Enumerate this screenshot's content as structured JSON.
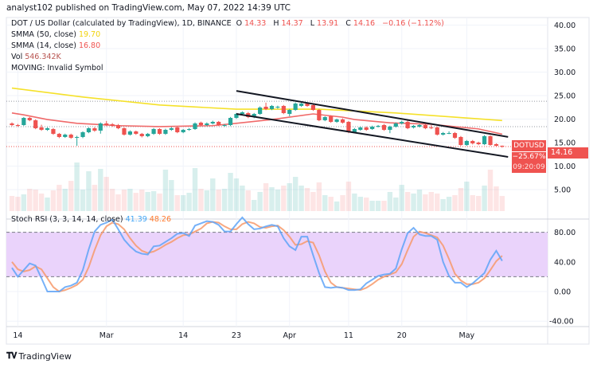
{
  "header": {
    "published": "analyst102 published on TradingView.com, May 07, 2022 14:39 UTC"
  },
  "legend": {
    "symbol": "DOT / US Dollar (calculated by TradingView), 1D, BINANCE",
    "o_label": "O",
    "o": "14.33",
    "h_label": "H",
    "h": "14.37",
    "l_label": "L",
    "l": "13.91",
    "c_label": "C",
    "c": "14.16",
    "change": "−0.16 (−1.12%)",
    "smma50_label": "SMMA (50, close)",
    "smma50_value": "19.70",
    "smma14_label": "SMMA (14, close)",
    "smma14_value": "16.80",
    "vol_label": "Vol",
    "vol_value": "546.342K",
    "moving": "MOVING: Invalid Symbol"
  },
  "price_tag": {
    "symbol": "DOTUSD",
    "price": "14.16",
    "change_pct": "−25.67%",
    "countdown": "09:20:09"
  },
  "stoch_legend": {
    "label": "Stoch RSI (3, 3, 14, 14, close)",
    "k": "41.39",
    "d": "48.26"
  },
  "footer": {
    "brand": "TradingView",
    "logo": "17"
  },
  "colors": {
    "up": "#26a69a",
    "down": "#ef5350",
    "smma50": "#f5e12a",
    "smma14": "#f06a6a",
    "stoch_k": "#5ea3f7",
    "stoch_d": "#f7996a",
    "band": "#ead3fb",
    "trendline": "#131722"
  },
  "chart_data": [
    {
      "type": "candlestick",
      "title": "DOT / US Dollar, 1D, BINANCE",
      "price_ticks": [
        "40.00",
        "35.00",
        "30.00",
        "25.00",
        "20.00",
        "15.00",
        "10.00",
        "5.00"
      ],
      "x_ticks": [
        {
          "label": "14",
          "date": "2022-02-14"
        },
        {
          "label": "Mar",
          "date": "2022-03-01"
        },
        {
          "label": "14",
          "date": "2022-03-14"
        },
        {
          "label": "23",
          "date": "2022-03-23"
        },
        {
          "label": "Apr",
          "date": "2022-04-01"
        },
        {
          "label": "11",
          "date": "2022-04-11"
        },
        {
          "label": "20",
          "date": "2022-04-20"
        },
        {
          "label": "May",
          "date": "2022-05-01"
        }
      ],
      "grid": true,
      "candles_columns": [
        "date",
        "open",
        "high",
        "low",
        "close",
        "volume_k"
      ],
      "candles": [
        [
          "2022-02-13",
          19.07,
          19.3,
          18.5,
          18.73,
          547
        ],
        [
          "2022-02-14",
          18.73,
          18.95,
          18.35,
          18.56,
          518
        ],
        [
          "2022-02-15",
          18.73,
          20.45,
          18.55,
          20.25,
          605
        ],
        [
          "2022-02-16",
          20.25,
          20.45,
          19.55,
          19.75,
          806
        ],
        [
          "2022-02-17",
          19.75,
          19.95,
          17.85,
          18.05,
          778
        ],
        [
          "2022-02-18",
          18.22,
          18.8,
          17.5,
          17.71,
          634
        ],
        [
          "2022-02-19",
          17.71,
          18.25,
          17.5,
          18.05,
          490
        ],
        [
          "2022-02-20",
          17.88,
          18.1,
          16.65,
          16.86,
          749
        ],
        [
          "2022-02-21",
          16.86,
          17.05,
          15.95,
          16.19,
          950
        ],
        [
          "2022-02-22",
          16.19,
          16.9,
          16.0,
          16.69,
          806
        ],
        [
          "2022-02-23",
          16.69,
          16.9,
          15.8,
          16.02,
          1094
        ],
        [
          "2022-02-24",
          16.1,
          16.45,
          14.32,
          16.19,
          1757
        ],
        [
          "2022-02-25",
          16.19,
          17.4,
          15.95,
          17.2,
          778
        ],
        [
          "2022-02-26",
          17.2,
          18.25,
          17.0,
          18.05,
          1440
        ],
        [
          "2022-02-27",
          18.05,
          18.3,
          17.3,
          17.54,
          950
        ],
        [
          "2022-02-28",
          17.54,
          19.3,
          16.9,
          19.07,
          1526
        ],
        [
          "2022-03-01",
          19.07,
          19.6,
          18.5,
          18.73,
          1238
        ],
        [
          "2022-03-02",
          18.9,
          19.15,
          18.35,
          18.56,
          806
        ],
        [
          "2022-03-03",
          18.73,
          18.95,
          17.85,
          18.05,
          605
        ],
        [
          "2022-03-04",
          18.05,
          18.25,
          16.5,
          16.69,
          778
        ],
        [
          "2022-03-05",
          16.69,
          17.6,
          16.5,
          17.37,
          806
        ],
        [
          "2022-03-06",
          17.37,
          17.55,
          16.65,
          16.86,
          662
        ],
        [
          "2022-03-07",
          16.86,
          17.05,
          16.1,
          16.36,
          778
        ],
        [
          "2022-03-08",
          16.36,
          17.05,
          16.15,
          16.86,
          691
        ],
        [
          "2022-03-09",
          16.86,
          18.1,
          16.65,
          17.88,
          720
        ],
        [
          "2022-03-10",
          17.88,
          18.05,
          16.65,
          16.86,
          634
        ],
        [
          "2022-03-11",
          16.86,
          17.95,
          16.65,
          17.71,
          1498
        ],
        [
          "2022-03-12",
          17.71,
          18.3,
          17.5,
          18.05,
          1123
        ],
        [
          "2022-03-13",
          18.22,
          18.4,
          17.0,
          17.2,
          576
        ],
        [
          "2022-03-14",
          17.2,
          17.9,
          17.0,
          17.71,
          576
        ],
        [
          "2022-03-15",
          17.71,
          18.1,
          17.5,
          17.88,
          662
        ],
        [
          "2022-03-16",
          17.88,
          19.3,
          17.7,
          19.07,
          1555
        ],
        [
          "2022-03-17",
          19.24,
          19.45,
          18.55,
          18.73,
          806
        ],
        [
          "2022-03-18",
          18.73,
          19.3,
          18.5,
          19.07,
          749
        ],
        [
          "2022-03-19",
          19.07,
          19.65,
          18.85,
          19.41,
          1181
        ],
        [
          "2022-03-20",
          19.41,
          19.6,
          18.5,
          18.73,
          778
        ],
        [
          "2022-03-21",
          18.56,
          18.95,
          18.35,
          18.73,
          806
        ],
        [
          "2022-03-22",
          18.73,
          20.45,
          18.5,
          20.25,
          1382
        ],
        [
          "2022-03-23",
          20.25,
          21.3,
          20.05,
          21.1,
          1181
        ],
        [
          "2022-03-24",
          21.1,
          21.65,
          20.9,
          21.44,
          922
        ],
        [
          "2022-03-25",
          21.27,
          21.5,
          20.2,
          20.42,
          749
        ],
        [
          "2022-03-26",
          20.42,
          21.3,
          20.2,
          21.1,
          403
        ],
        [
          "2022-03-27",
          21.1,
          22.7,
          20.9,
          22.46,
          691
        ],
        [
          "2022-03-28",
          22.63,
          23.5,
          21.9,
          22.12,
          1008
        ],
        [
          "2022-03-29",
          22.12,
          23.0,
          21.9,
          22.8,
          864
        ],
        [
          "2022-03-30",
          22.46,
          22.85,
          22.2,
          22.63,
          778
        ],
        [
          "2022-03-31",
          22.8,
          23.0,
          21.05,
          21.27,
          922
        ],
        [
          "2022-04-01",
          21.1,
          22.15,
          20.6,
          21.95,
          1008
        ],
        [
          "2022-04-02",
          21.95,
          23.55,
          21.75,
          23.3,
          1238
        ],
        [
          "2022-04-03",
          22.8,
          23.5,
          22.6,
          23.3,
          922
        ],
        [
          "2022-04-04",
          23.3,
          23.5,
          22.6,
          22.8,
          835
        ],
        [
          "2022-04-05",
          22.97,
          23.2,
          21.75,
          21.95,
          691
        ],
        [
          "2022-04-06",
          21.95,
          22.15,
          19.55,
          19.75,
          1037
        ],
        [
          "2022-04-07",
          19.75,
          20.6,
          19.55,
          20.42,
          576
        ],
        [
          "2022-04-08",
          20.59,
          20.8,
          19.2,
          19.41,
          518
        ],
        [
          "2022-04-09",
          19.41,
          20.1,
          19.2,
          19.92,
          346
        ],
        [
          "2022-04-10",
          19.92,
          20.15,
          19.05,
          19.24,
          576
        ],
        [
          "2022-04-11",
          19.41,
          19.6,
          17.0,
          17.2,
          1066
        ],
        [
          "2022-04-12",
          17.2,
          18.1,
          17.0,
          17.88,
          634
        ],
        [
          "2022-04-13",
          17.71,
          18.45,
          17.5,
          18.22,
          518
        ],
        [
          "2022-04-14",
          18.22,
          18.45,
          17.5,
          17.71,
          490
        ],
        [
          "2022-04-15",
          17.88,
          18.6,
          17.7,
          18.39,
          374
        ],
        [
          "2022-04-16",
          18.39,
          18.75,
          18.2,
          18.56,
          374
        ],
        [
          "2022-04-17",
          18.73,
          18.95,
          17.5,
          17.71,
          374
        ],
        [
          "2022-04-18",
          17.71,
          18.6,
          17.0,
          18.39,
          691
        ],
        [
          "2022-04-19",
          18.39,
          19.3,
          18.2,
          19.07,
          490
        ],
        [
          "2022-04-20",
          19.07,
          19.65,
          18.85,
          19.41,
          950
        ],
        [
          "2022-04-21",
          19.41,
          19.65,
          17.85,
          18.05,
          691
        ],
        [
          "2022-04-22",
          18.22,
          18.75,
          18.0,
          18.56,
          634
        ],
        [
          "2022-04-23",
          18.39,
          18.95,
          18.2,
          18.73,
          778
        ],
        [
          "2022-04-24",
          18.73,
          18.95,
          17.85,
          18.05,
          605
        ],
        [
          "2022-04-25",
          18.22,
          18.7,
          17.85,
          18.05,
          691
        ],
        [
          "2022-04-26",
          18.22,
          18.45,
          16.5,
          16.69,
          634
        ],
        [
          "2022-04-27",
          16.69,
          17.25,
          16.5,
          17.03,
          432
        ],
        [
          "2022-04-28",
          17.03,
          17.4,
          16.8,
          17.03,
          518
        ],
        [
          "2022-04-29",
          17.03,
          17.25,
          15.8,
          16.02,
          576
        ],
        [
          "2022-04-30",
          16.19,
          16.4,
          14.3,
          14.49,
          835
        ],
        [
          "2022-05-01",
          14.49,
          15.55,
          14.3,
          15.34,
          1066
        ],
        [
          "2022-05-02",
          15.34,
          15.55,
          14.6,
          14.83,
          576
        ],
        [
          "2022-05-03",
          15.0,
          15.2,
          14.45,
          14.66,
          547
        ],
        [
          "2022-05-04",
          14.66,
          16.6,
          14.45,
          16.36,
          922
        ],
        [
          "2022-05-05",
          16.36,
          16.55,
          14.3,
          14.49,
          1498
        ],
        [
          "2022-05-06",
          14.66,
          14.85,
          14.1,
          14.32,
          893
        ],
        [
          "2022-05-07",
          14.33,
          14.37,
          13.91,
          14.16,
          546.342
        ]
      ],
      "smma50": [
        [
          "2022-02-13",
          26.6
        ],
        [
          "2022-02-25",
          24.7
        ],
        [
          "2022-03-10",
          23.0
        ],
        [
          "2022-03-23",
          22.1
        ],
        [
          "2022-04-06",
          22.1
        ],
        [
          "2022-04-19",
          21.3
        ],
        [
          "2022-05-07",
          19.7
        ]
      ],
      "smma14": [
        [
          "2022-02-13",
          21.3
        ],
        [
          "2022-02-15",
          20.9
        ],
        [
          "2022-02-19",
          19.9
        ],
        [
          "2022-02-24",
          19.1
        ],
        [
          "2022-03-03",
          18.6
        ],
        [
          "2022-03-10",
          18.4
        ],
        [
          "2022-03-19",
          18.6
        ],
        [
          "2022-03-23",
          19.1
        ],
        [
          "2022-03-29",
          19.9
        ],
        [
          "2022-04-05",
          21.1
        ],
        [
          "2022-04-10",
          20.4
        ],
        [
          "2022-04-12",
          19.9
        ],
        [
          "2022-04-18",
          19.2
        ],
        [
          "2022-04-25",
          18.9
        ],
        [
          "2022-05-03",
          17.9
        ],
        [
          "2022-05-07",
          16.8
        ]
      ],
      "trendlines": [
        {
          "start": {
            "date": "2022-03-23",
            "price": 26.0
          },
          "end": {
            "date": "2022-05-08",
            "price": 16.2
          }
        },
        {
          "start": {
            "date": "2022-03-23",
            "price": 21.1
          },
          "end": {
            "date": "2022-05-08",
            "price": 11.95
          }
        }
      ],
      "dotted_levels": [
        23.8,
        18.4
      ],
      "last_price": 14.16
    },
    {
      "type": "line",
      "title": "Stoch RSI (3, 3, 14, 14, close)",
      "y_ticks": [
        "80.00",
        "40.00",
        "0.00",
        "-40.00"
      ],
      "band": [
        20,
        80
      ],
      "series": [
        {
          "name": "K",
          "values": [
            32,
            20,
            29,
            38,
            35,
            18,
            0,
            0,
            0,
            6,
            8,
            12,
            29,
            57,
            81,
            90,
            93,
            97,
            84,
            70,
            61,
            54,
            51,
            50,
            61,
            62,
            67,
            72,
            78,
            79,
            75,
            89,
            92,
            95,
            94,
            90,
            81,
            81,
            91,
            100,
            91,
            84,
            85,
            88,
            90,
            88,
            72,
            61,
            56,
            74,
            74,
            49,
            25,
            6,
            5,
            6,
            5,
            2,
            2,
            3,
            11,
            16,
            21,
            23,
            24,
            31,
            57,
            79,
            86,
            77,
            75,
            75,
            70,
            40,
            21,
            12,
            12,
            6,
            11,
            18,
            25,
            43,
            55,
            41.39
          ]
        },
        {
          "name": "D",
          "values": [
            40,
            30,
            27,
            29,
            34,
            30,
            18,
            6,
            0,
            2,
            5,
            9,
            16,
            33,
            56,
            76,
            88,
            93,
            91,
            84,
            72,
            62,
            55,
            52,
            54,
            58,
            63,
            67,
            72,
            76,
            77,
            81,
            85,
            92,
            94,
            93,
            88,
            84,
            84,
            91,
            94,
            92,
            87,
            86,
            88,
            89,
            83,
            74,
            63,
            64,
            68,
            66,
            49,
            27,
            12,
            6,
            5,
            4,
            3,
            2,
            5,
            10,
            16,
            20,
            23,
            26,
            37,
            56,
            74,
            81,
            79,
            76,
            73,
            62,
            44,
            24,
            15,
            10,
            10,
            12,
            18,
            29,
            41,
            48.26
          ]
        }
      ]
    }
  ]
}
